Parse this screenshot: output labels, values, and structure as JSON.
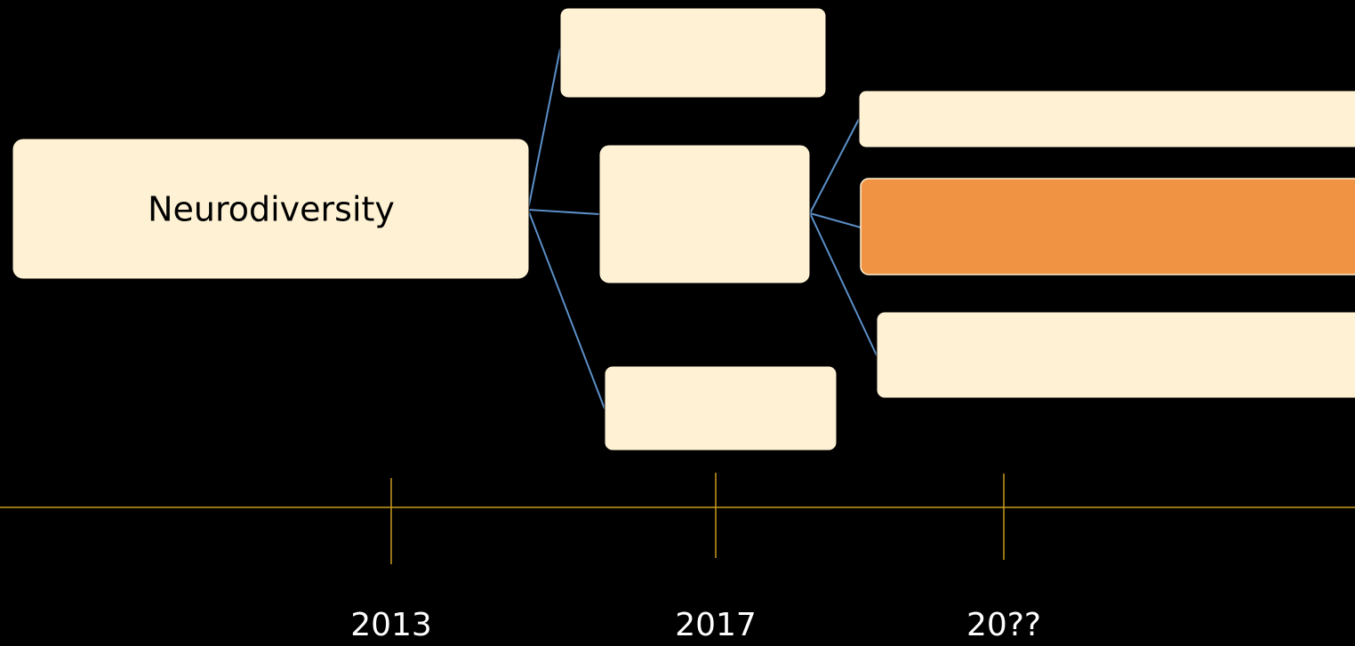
{
  "nodes": [
    {
      "label": "Neurodiversity"
    }
  ],
  "timeline": {
    "labels": [
      "2013",
      "2017",
      "20??"
    ]
  }
}
